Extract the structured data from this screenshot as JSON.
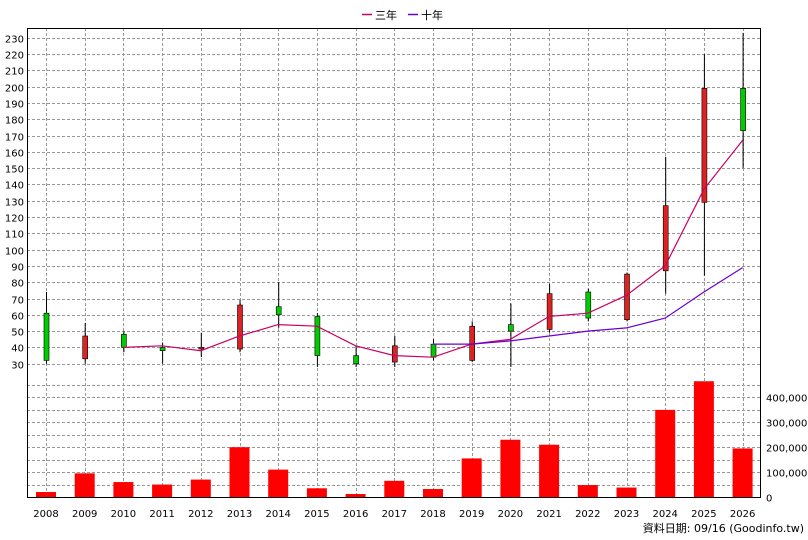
{
  "chart_data": {
    "type": "candlestick",
    "title": "",
    "legend": {
      "position": "top",
      "items": [
        {
          "label": "三年",
          "color": "#cc0066"
        },
        {
          "label": "十年",
          "color": "#6a00d4"
        }
      ]
    },
    "categories": [
      "2008",
      "2009",
      "2010",
      "2011",
      "2012",
      "2013",
      "2014",
      "2015",
      "2016",
      "2017",
      "2018",
      "2019",
      "2020",
      "2021",
      "2022",
      "2023",
      "2024",
      "2025",
      "2026"
    ],
    "price_axis": {
      "ylim": [
        20,
        236
      ],
      "ticks": [
        30,
        40,
        50,
        60,
        70,
        80,
        90,
        100,
        110,
        120,
        130,
        140,
        150,
        160,
        170,
        180,
        190,
        200,
        210,
        220,
        230
      ],
      "grid": true
    },
    "candles": [
      {
        "year": "2008",
        "open": 32,
        "close": 61,
        "high": 74,
        "low": 30
      },
      {
        "year": "2009",
        "open": 47,
        "close": 33,
        "high": 55,
        "low": 30
      },
      {
        "year": "2010",
        "open": 40,
        "close": 48,
        "high": 50,
        "low": 37
      },
      {
        "year": "2011",
        "open": 38,
        "close": 40,
        "high": 43,
        "low": 30
      },
      {
        "year": "2012",
        "open": 40,
        "close": 39,
        "high": 49,
        "low": 34
      },
      {
        "year": "2013",
        "open": 66,
        "close": 39,
        "high": 69,
        "low": 37
      },
      {
        "year": "2014",
        "open": 60,
        "close": 65,
        "high": 80,
        "low": 52
      },
      {
        "year": "2015",
        "open": 35,
        "close": 59,
        "high": 61,
        "low": 28
      },
      {
        "year": "2016",
        "open": 30,
        "close": 35,
        "high": 41,
        "low": 28
      },
      {
        "year": "2017",
        "open": 41,
        "close": 31,
        "high": 47,
        "low": 28
      },
      {
        "year": "2018",
        "open": 34,
        "close": 42,
        "high": 45,
        "low": 32
      },
      {
        "year": "2019",
        "open": 53,
        "close": 32,
        "high": 56,
        "low": 31
      },
      {
        "year": "2020",
        "open": 50,
        "close": 54,
        "high": 67,
        "low": 28
      },
      {
        "year": "2021",
        "open": 73,
        "close": 51,
        "high": 79,
        "low": 49
      },
      {
        "year": "2022",
        "open": 58,
        "close": 74,
        "high": 76,
        "low": 56
      },
      {
        "year": "2023",
        "open": 85,
        "close": 57,
        "high": 86,
        "low": 56
      },
      {
        "year": "2024",
        "open": 127,
        "close": 87,
        "high": 157,
        "low": 73
      },
      {
        "year": "2025",
        "open": 199,
        "close": 129,
        "high": 220,
        "low": 84
      },
      {
        "year": "2026",
        "open": 173,
        "close": 199,
        "high": 233,
        "low": 150
      }
    ],
    "colors": {
      "up": "#00cc00",
      "down": "#dd2222",
      "wick": "#000000"
    },
    "ma_series": [
      {
        "name": "三年",
        "color": "#cc0066",
        "values": [
          null,
          null,
          40,
          41,
          38,
          47,
          54,
          53,
          41,
          35,
          34,
          42,
          45,
          59,
          61,
          72,
          90,
          137,
          167
        ]
      },
      {
        "name": "十年",
        "color": "#6a00d4",
        "values": [
          null,
          null,
          null,
          null,
          null,
          null,
          null,
          null,
          null,
          null,
          42,
          42,
          44,
          47,
          50,
          52,
          58,
          74,
          89
        ]
      }
    ],
    "volume_axis": {
      "ylim": [
        0,
        470000
      ],
      "ticks": [
        0,
        100000,
        200000,
        300000,
        400000
      ],
      "tick_labels": [
        "0",
        "100,000",
        "200,000",
        "300,000",
        "400,000"
      ]
    },
    "volumes": [
      20000,
      95000,
      60000,
      50000,
      70000,
      200000,
      110000,
      35000,
      12000,
      65000,
      32000,
      155000,
      230000,
      210000,
      48000,
      38000,
      350000,
      465000,
      195000
    ],
    "volume_color": "#ff0000"
  },
  "source_text": "資料日期: 09/16 (Goodinfo.tw)"
}
